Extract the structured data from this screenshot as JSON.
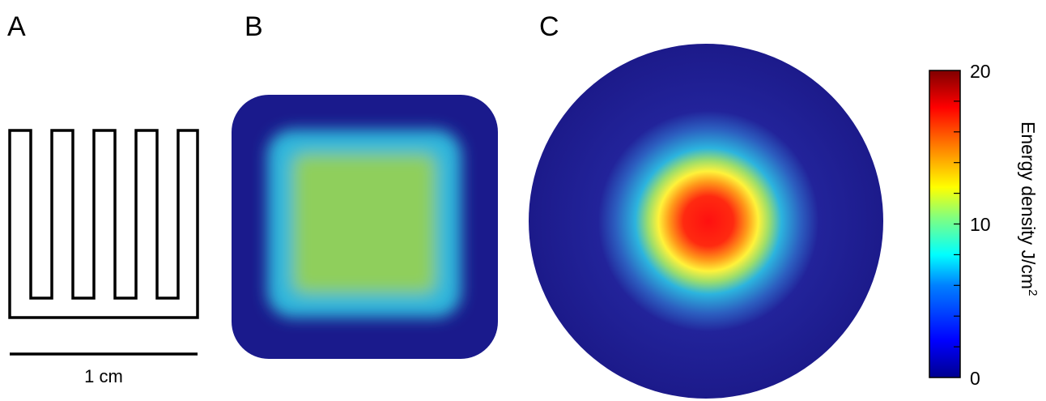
{
  "panels": {
    "a": {
      "letter": "A",
      "scale_label": "1 cm"
    },
    "b": {
      "letter": "B"
    },
    "c": {
      "letter": "C"
    }
  },
  "colorbar": {
    "label_main": "Energy density J/cm",
    "label_sup": "2",
    "min_label": "0",
    "mid_label": "10",
    "max_label": "20",
    "range": [
      0,
      20
    ]
  },
  "colors": {
    "line": "#000000",
    "jet": [
      "#00008f",
      "#0000ff",
      "#0080ff",
      "#00ffff",
      "#80ff80",
      "#ffff00",
      "#ff8000",
      "#ff0000",
      "#800000"
    ],
    "panel_b": {
      "outer": "#1a1a8c",
      "mid": "#2fb6dc",
      "inner": "#8fcf5c"
    },
    "panel_c": {
      "outer": "#1c1a8a",
      "ring1": "#2cb4de",
      "ring2": "#fff23a",
      "core": "#ff1414"
    }
  }
}
